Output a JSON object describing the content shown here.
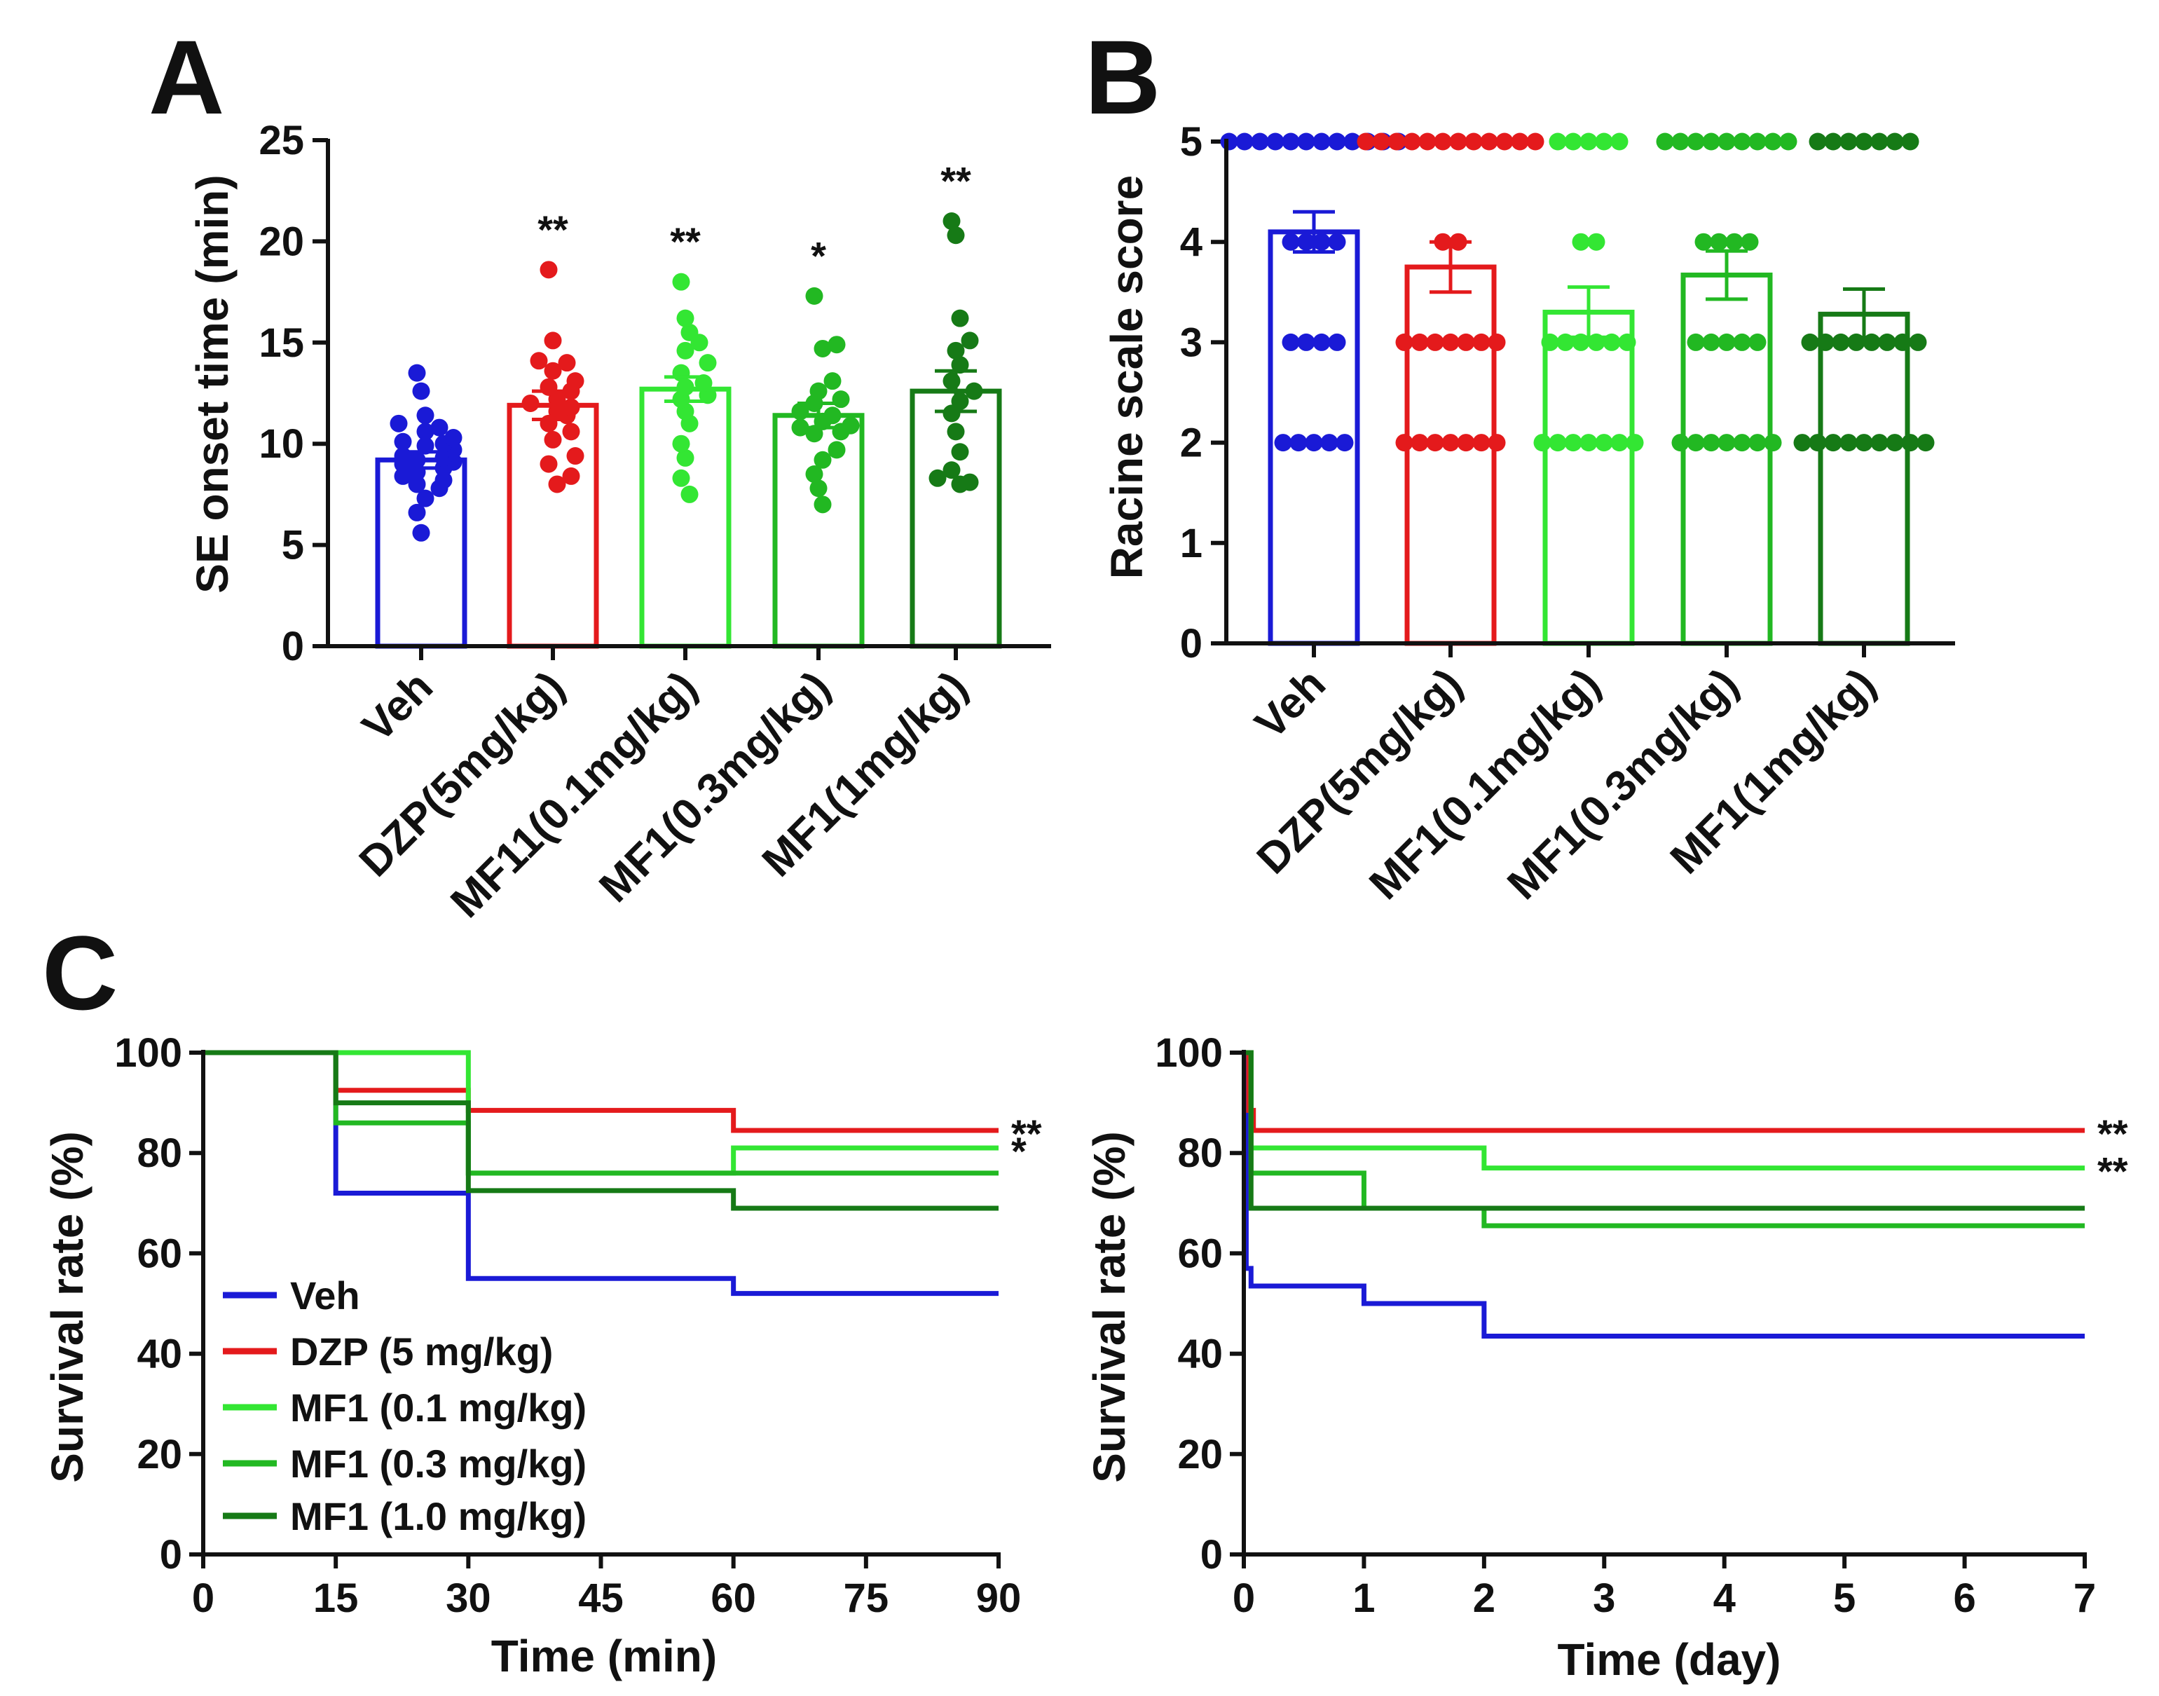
{
  "colors": {
    "veh": "#1a1ad6",
    "dzp": "#e41a1c",
    "mf1_01": "#33e633",
    "mf1_03": "#22b822",
    "mf1_10": "#167a16",
    "axis": "#111111"
  },
  "chart_data": [
    {
      "id": "A",
      "panel_label": "A",
      "type": "bar",
      "title": "",
      "ylabel": "SE onset time (min)",
      "xlabel": "",
      "ylim": [
        0,
        25
      ],
      "yticks": [
        0,
        5,
        10,
        15,
        20,
        25
      ],
      "categories": [
        "Veh",
        "DZP(5mg/kg)",
        "MF11(0.1mg/kg)",
        "MF1(0.3mg/kg)",
        "MF1(1mg/kg)"
      ],
      "color_keys": [
        "veh",
        "dzp",
        "mf1_01",
        "mf1_03",
        "mf1_10"
      ],
      "means": [
        9.2,
        11.9,
        12.7,
        11.4,
        12.6
      ],
      "sem": [
        0.4,
        0.7,
        0.6,
        0.6,
        1.0
      ],
      "significance": [
        "",
        "**",
        "**",
        "*",
        "**"
      ],
      "points": [
        [
          13.5,
          12.6,
          11.4,
          11.0,
          10.8,
          10.6,
          10.3,
          10.1,
          9.9,
          9.7,
          9.4,
          9.3,
          9.1,
          9.0,
          8.8,
          8.6,
          8.4,
          8.2,
          8.0,
          7.8,
          7.3,
          6.6,
          5.6,
          10.0,
          9.2
        ],
        [
          18.6,
          15.1,
          14.1,
          14.0,
          13.6,
          13.1,
          12.8,
          12.6,
          12.2,
          12.0,
          11.8,
          11.6,
          11.0,
          10.6,
          9.4,
          9.0,
          8.4,
          8.0,
          11.4,
          10.2
        ],
        [
          18.0,
          16.2,
          15.5,
          15.0,
          14.6,
          14.0,
          13.5,
          13.0,
          12.4,
          12.2,
          11.6,
          11.0,
          10.0,
          9.3,
          7.5,
          8.3,
          12.8
        ],
        [
          17.3,
          14.9,
          14.7,
          13.1,
          12.6,
          12.2,
          12.0,
          11.6,
          11.1,
          10.9,
          10.8,
          10.6,
          10.5,
          9.7,
          9.2,
          8.5,
          7.8,
          7.0,
          11.4
        ],
        [
          21.0,
          20.3,
          16.2,
          15.1,
          14.6,
          13.9,
          13.1,
          12.6,
          12.1,
          11.5,
          10.6,
          9.6,
          8.7,
          8.3,
          8.0,
          8.1
        ]
      ]
    },
    {
      "id": "B",
      "panel_label": "B",
      "type": "bar",
      "title": "",
      "ylabel": "Racine scale score",
      "xlabel": "",
      "ylim": [
        0,
        5
      ],
      "yticks": [
        0,
        1,
        2,
        3,
        4,
        5
      ],
      "categories": [
        "Veh",
        "DZP(5mg/kg)",
        "MF1(0.1mg/kg)",
        "MF1(0.3mg/kg)",
        "MF1(1mg/kg)"
      ],
      "color_keys": [
        "veh",
        "dzp",
        "mf1_01",
        "mf1_03",
        "mf1_10"
      ],
      "means": [
        4.1,
        3.75,
        3.3,
        3.67,
        3.28
      ],
      "sem": [
        0.2,
        0.25,
        0.25,
        0.24,
        0.25
      ],
      "score_counts": [
        {
          "5": 12,
          "4": 4,
          "3": 4,
          "2": 5
        },
        {
          "5": 12,
          "4": 2,
          "3": 7,
          "2": 7
        },
        {
          "5": 5,
          "4": 2,
          "3": 6,
          "2": 7
        },
        {
          "5": 9,
          "4": 4,
          "3": 5,
          "2": 7
        },
        {
          "5": 7,
          "4": 0,
          "3": 8,
          "2": 9
        }
      ]
    },
    {
      "id": "C-left",
      "panel_label": "C",
      "type": "line",
      "step": true,
      "title": "",
      "xlabel": "Time (min)",
      "ylabel": "Survival rate (%)",
      "xlim": [
        0,
        90
      ],
      "ylim": [
        0,
        100
      ],
      "xticks": [
        0,
        15,
        30,
        45,
        60,
        75,
        90
      ],
      "yticks": [
        0,
        20,
        40,
        60,
        80,
        100
      ],
      "legend_position": "bottom-left",
      "series": [
        {
          "name": "Veh",
          "color_key": "veh",
          "x": [
            0,
            15,
            30,
            60,
            90
          ],
          "y": [
            100,
            72,
            55,
            52,
            52
          ],
          "significance": ""
        },
        {
          "name": "DZP (5 mg/kg)",
          "color_key": "dzp",
          "x": [
            0,
            15,
            30,
            60,
            90
          ],
          "y": [
            100,
            92.5,
            88.5,
            84.5,
            84.5
          ],
          "significance": "**"
        },
        {
          "name": "MF1 (0.1 mg/kg)",
          "color_key": "mf1_01",
          "x": [
            0,
            30,
            60,
            90
          ],
          "y": [
            100,
            76,
            81,
            81
          ],
          "significance": "*"
        },
        {
          "name": "MF1 (0.3 mg/kg)",
          "color_key": "mf1_03",
          "x": [
            0,
            15,
            30,
            90
          ],
          "y": [
            100,
            86,
            76,
            76
          ],
          "significance": ""
        },
        {
          "name": "MF1 (1.0 mg/kg)",
          "color_key": "mf1_10",
          "x": [
            0,
            15,
            30,
            60,
            90
          ],
          "y": [
            100,
            90,
            72.5,
            69,
            69
          ],
          "significance": ""
        }
      ]
    },
    {
      "id": "C-right",
      "panel_label": "",
      "type": "line",
      "step": true,
      "title": "",
      "xlabel": "Time (day)",
      "ylabel": "Survival rate (%)",
      "xlim": [
        0,
        7
      ],
      "ylim": [
        0,
        100
      ],
      "xticks": [
        0,
        1,
        2,
        3,
        4,
        5,
        6,
        7
      ],
      "yticks": [
        0,
        20,
        40,
        60,
        80,
        100
      ],
      "series": [
        {
          "name": "Veh",
          "color_key": "veh",
          "x": [
            0,
            0.02,
            0.06,
            1,
            2,
            7
          ],
          "y": [
            100,
            57,
            53.5,
            50,
            43.5,
            43.5
          ],
          "significance": ""
        },
        {
          "name": "DZP (5 mg/kg)",
          "color_key": "dzp",
          "x": [
            0,
            0.04,
            0.08,
            7
          ],
          "y": [
            100,
            88.5,
            84.5,
            84.5
          ],
          "significance": "**"
        },
        {
          "name": "MF1 (0.1 mg/kg)",
          "color_key": "mf1_01",
          "x": [
            0,
            0.06,
            2,
            7
          ],
          "y": [
            100,
            81,
            77,
            77
          ],
          "significance": "**"
        },
        {
          "name": "MF1 (0.3 mg/kg)",
          "color_key": "mf1_03",
          "x": [
            0,
            0.06,
            1,
            2,
            7
          ],
          "y": [
            100,
            76,
            69,
            65.5,
            65.5
          ],
          "significance": ""
        },
        {
          "name": "MF1 (1.0 mg/kg)",
          "color_key": "mf1_10",
          "x": [
            0,
            0.06,
            7
          ],
          "y": [
            100,
            69,
            69
          ],
          "significance": ""
        }
      ]
    }
  ]
}
